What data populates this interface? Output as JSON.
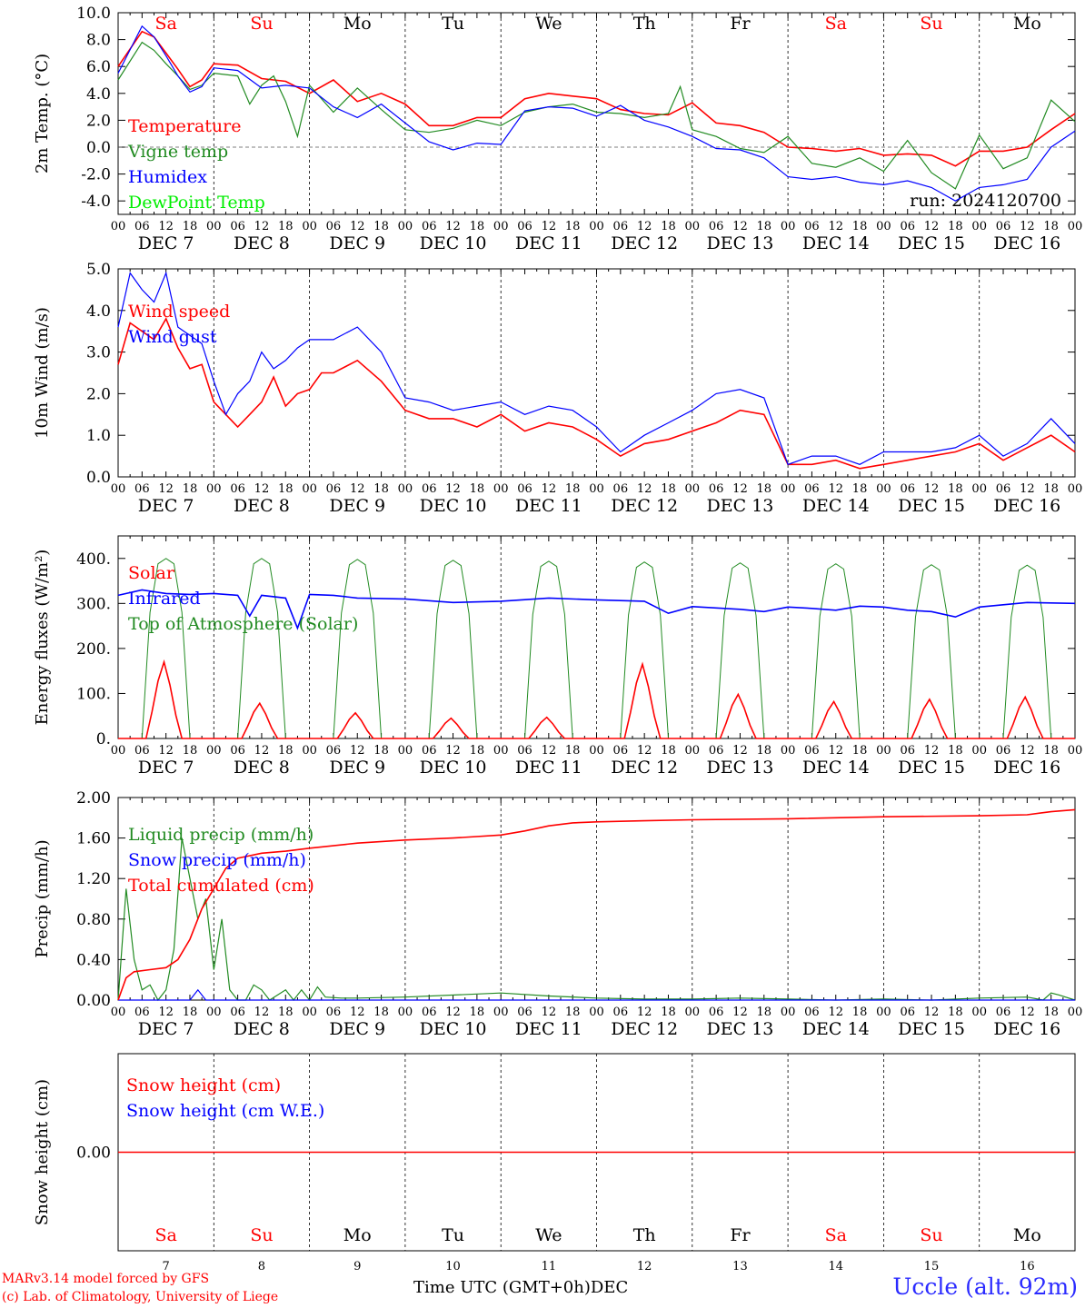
{
  "colors": {
    "red": "#ff0000",
    "darkgreen": "#228b22",
    "blue": "#0000ff",
    "lightgreen": "#00ee00",
    "text": "#000000",
    "location": "#2b2bff"
  },
  "days": [
    {
      "abbr": "Sa",
      "num": "7",
      "weekend": true
    },
    {
      "abbr": "Su",
      "num": "8",
      "weekend": true
    },
    {
      "abbr": "Mo",
      "num": "9",
      "weekend": false
    },
    {
      "abbr": "Tu",
      "num": "10",
      "weekend": false
    },
    {
      "abbr": "We",
      "num": "11",
      "weekend": false
    },
    {
      "abbr": "Th",
      "num": "12",
      "weekend": false
    },
    {
      "abbr": "Fr",
      "num": "13",
      "weekend": false
    },
    {
      "abbr": "Sa",
      "num": "14",
      "weekend": true
    },
    {
      "abbr": "Su",
      "num": "15",
      "weekend": true
    },
    {
      "abbr": "Mo",
      "num": "16",
      "weekend": false
    }
  ],
  "hour_ticks": [
    "00",
    "06",
    "12",
    "18"
  ],
  "month_label": "DEC",
  "footer": {
    "model": "MARv3.14 model forced by GFS",
    "copyright": "(c) Lab. of Climatology, University of Liege",
    "xlabel": "Time UTC (GMT+0h)",
    "month": "DEC",
    "location": "Uccle (alt. 92m)"
  },
  "chart_data": [
    {
      "type": "line",
      "ylabel": "2m Temp. (°C)",
      "ylim": [
        -5,
        10
      ],
      "yticks": [
        "10.0",
        "8.0",
        "6.0",
        "4.0",
        "2.0",
        "0.0",
        "-2.0",
        "-4.0"
      ],
      "ytick_values": [
        10,
        8,
        6,
        4,
        2,
        0,
        -2,
        -4
      ],
      "zero_line": true,
      "run_label": "run: 2024120700",
      "x_unit": "hours since Dec 7 00 UTC",
      "series": [
        {
          "name": "Temperature",
          "color": "#ff0000",
          "x": [
            0,
            6,
            9,
            12,
            15,
            18,
            21,
            24,
            30,
            36,
            42,
            48,
            54,
            60,
            66,
            72,
            78,
            84,
            90,
            96,
            102,
            108,
            114,
            120,
            126,
            132,
            138,
            144,
            150,
            156,
            162,
            168,
            174,
            180,
            186,
            192,
            198,
            204,
            210,
            216,
            222,
            228,
            234,
            240
          ],
          "y": [
            6.0,
            8.6,
            8.2,
            7.0,
            5.8,
            4.5,
            5.0,
            6.2,
            6.1,
            5.1,
            4.9,
            4.0,
            5.0,
            3.4,
            4.0,
            3.2,
            1.6,
            1.6,
            2.2,
            2.2,
            3.6,
            4.0,
            3.8,
            3.6,
            2.8,
            2.5,
            2.4,
            3.3,
            1.8,
            1.6,
            1.1,
            0.0,
            -0.1,
            -0.3,
            -0.1,
            -0.6,
            -0.5,
            -0.6,
            -1.4,
            -0.3,
            -0.3,
            0.0,
            1.3,
            2.5
          ]
        },
        {
          "name": "Vigne temp",
          "color": "#228b22",
          "x": [
            0,
            6,
            9,
            12,
            15,
            18,
            21,
            24,
            30,
            33,
            36,
            39,
            42,
            45,
            48,
            54,
            60,
            66,
            72,
            78,
            84,
            90,
            96,
            102,
            108,
            114,
            120,
            126,
            132,
            138,
            141,
            144,
            150,
            156,
            162,
            168,
            174,
            180,
            186,
            192,
            198,
            204,
            210,
            216,
            222,
            228,
            234,
            240
          ],
          "y": [
            5.0,
            7.8,
            7.2,
            6.2,
            5.3,
            4.3,
            4.6,
            5.5,
            5.3,
            3.2,
            4.6,
            5.3,
            3.4,
            0.8,
            4.6,
            2.6,
            4.4,
            2.8,
            1.3,
            1.1,
            1.4,
            2.0,
            1.6,
            2.6,
            3.0,
            3.2,
            2.6,
            2.5,
            2.2,
            2.5,
            4.5,
            1.3,
            0.8,
            -0.1,
            -0.4,
            0.8,
            -1.2,
            -1.5,
            -0.8,
            -1.8,
            0.5,
            -1.9,
            -3.1,
            0.9,
            -1.6,
            -0.8,
            3.5,
            1.9
          ]
        },
        {
          "name": "Humidex",
          "color": "#0000ff",
          "x": [
            0,
            6,
            9,
            12,
            15,
            18,
            21,
            24,
            30,
            36,
            42,
            48,
            54,
            60,
            66,
            72,
            78,
            84,
            90,
            96,
            102,
            108,
            114,
            120,
            126,
            132,
            138,
            144,
            150,
            156,
            162,
            168,
            174,
            180,
            186,
            192,
            198,
            204,
            210,
            216,
            222,
            228,
            234,
            240
          ],
          "y": [
            5.5,
            9.0,
            8.2,
            6.8,
            5.3,
            4.1,
            4.5,
            5.9,
            5.7,
            4.4,
            4.6,
            4.4,
            3.0,
            2.2,
            3.2,
            1.8,
            0.4,
            -0.2,
            0.3,
            0.2,
            2.7,
            3.0,
            2.9,
            2.3,
            3.1,
            2.0,
            1.5,
            0.8,
            -0.1,
            -0.2,
            -0.8,
            -2.2,
            -2.4,
            -2.2,
            -2.6,
            -2.8,
            -2.5,
            -3.0,
            -4.0,
            -3.0,
            -2.8,
            -2.4,
            0.0,
            1.2
          ]
        },
        {
          "name": "DewPoint Temp",
          "color": "#00ee00",
          "x": [],
          "y": []
        }
      ]
    },
    {
      "type": "line",
      "ylabel": "10m Wind (m/s)",
      "ylim": [
        0,
        5
      ],
      "yticks": [
        "5.0",
        "4.0",
        "3.0",
        "2.0",
        "1.0",
        "0.0"
      ],
      "ytick_values": [
        5,
        4,
        3,
        2,
        1,
        0
      ],
      "x_unit": "hours since Dec 7 00 UTC",
      "series": [
        {
          "name": "Wind speed",
          "color": "#ff0000",
          "x": [
            0,
            3,
            6,
            9,
            12,
            15,
            18,
            21,
            24,
            27,
            30,
            33,
            36,
            39,
            42,
            45,
            48,
            51,
            54,
            60,
            66,
            72,
            78,
            84,
            90,
            96,
            102,
            108,
            114,
            120,
            126,
            132,
            138,
            144,
            150,
            156,
            162,
            168,
            174,
            180,
            186,
            192,
            198,
            204,
            210,
            216,
            222,
            228,
            234,
            240
          ],
          "y": [
            2.7,
            3.7,
            3.5,
            3.3,
            3.8,
            3.1,
            2.6,
            2.7,
            1.8,
            1.5,
            1.2,
            1.5,
            1.8,
            2.4,
            1.7,
            2.0,
            2.1,
            2.5,
            2.5,
            2.8,
            2.3,
            1.6,
            1.4,
            1.4,
            1.2,
            1.5,
            1.1,
            1.3,
            1.2,
            0.9,
            0.5,
            0.8,
            0.9,
            1.1,
            1.3,
            1.6,
            1.5,
            0.3,
            0.3,
            0.4,
            0.2,
            0.3,
            0.4,
            0.5,
            0.6,
            0.8,
            0.4,
            0.7,
            1.0,
            0.6
          ]
        },
        {
          "name": "Wind gust",
          "color": "#0000ff",
          "x": [
            0,
            3,
            6,
            9,
            12,
            15,
            18,
            21,
            24,
            27,
            30,
            33,
            36,
            39,
            42,
            45,
            48,
            51,
            54,
            60,
            66,
            72,
            78,
            84,
            90,
            96,
            102,
            108,
            114,
            120,
            126,
            132,
            138,
            144,
            150,
            156,
            162,
            168,
            174,
            180,
            186,
            192,
            198,
            204,
            210,
            216,
            222,
            228,
            234,
            240
          ],
          "y": [
            3.6,
            4.9,
            4.5,
            4.2,
            4.9,
            3.6,
            3.4,
            3.2,
            2.3,
            1.5,
            2.0,
            2.3,
            3.0,
            2.6,
            2.8,
            3.1,
            3.3,
            3.3,
            3.3,
            3.6,
            3.0,
            1.9,
            1.8,
            1.6,
            1.7,
            1.8,
            1.5,
            1.7,
            1.6,
            1.2,
            0.6,
            1.0,
            1.3,
            1.6,
            2.0,
            2.1,
            1.9,
            0.3,
            0.5,
            0.5,
            0.3,
            0.6,
            0.6,
            0.6,
            0.7,
            1.0,
            0.5,
            0.8,
            1.4,
            0.8
          ]
        }
      ]
    },
    {
      "type": "line",
      "ylabel": "Energy fluxes (W/m²)",
      "ylim": [
        0,
        450
      ],
      "yticks": [
        "400.",
        "300.",
        "200.",
        "100.",
        "0."
      ],
      "ytick_values": [
        400,
        300,
        200,
        100,
        0
      ],
      "x_unit": "hours since Dec 7 00 UTC",
      "series": [
        {
          "name": "Solar",
          "color": "#ff0000",
          "peaks": [
            170,
            78,
            57,
            45,
            47,
            165,
            98,
            82,
            87,
            92
          ]
        },
        {
          "name": "Infrared",
          "color": "#0000ff",
          "x": [
            0,
            6,
            12,
            18,
            24,
            30,
            33,
            36,
            42,
            45,
            48,
            54,
            60,
            72,
            84,
            96,
            108,
            120,
            132,
            138,
            144,
            150,
            156,
            162,
            168,
            174,
            180,
            186,
            192,
            198,
            204,
            210,
            216,
            228,
            240
          ],
          "y": [
            318,
            330,
            322,
            320,
            322,
            318,
            272,
            318,
            312,
            245,
            320,
            318,
            312,
            310,
            302,
            305,
            312,
            308,
            305,
            278,
            293,
            290,
            287,
            282,
            292,
            289,
            285,
            294,
            292,
            285,
            282,
            270,
            292,
            302,
            300
          ]
        },
        {
          "name": "Top of Atmosphere (Solar)",
          "color": "#228b22",
          "peaks": [
            400,
            400,
            398,
            396,
            394,
            392,
            390,
            388,
            386,
            385
          ]
        }
      ]
    },
    {
      "type": "line",
      "ylabel": "Precip (mm/h)",
      "ylim": [
        0,
        2
      ],
      "yticks": [
        "2.00",
        "1.60",
        "1.20",
        "0.80",
        "0.40",
        "0.00"
      ],
      "ytick_values": [
        2.0,
        1.6,
        1.2,
        0.8,
        0.4,
        0.0
      ],
      "x_unit": "hours since Dec 7 00 UTC",
      "series": [
        {
          "name": "Liquid precip (mm/h)",
          "color": "#228b22",
          "x": [
            0,
            2,
            4,
            6,
            8,
            10,
            12,
            14,
            16,
            18,
            20,
            22,
            24,
            26,
            28,
            30,
            32,
            34,
            36,
            38,
            40,
            42,
            44,
            46,
            48,
            50,
            52,
            56,
            60,
            72,
            96,
            108,
            120,
            132,
            144,
            156,
            168,
            180,
            192,
            204,
            216,
            228,
            232,
            234,
            236,
            240
          ],
          "y": [
            0,
            1.1,
            0.4,
            0.1,
            0.15,
            0.0,
            0.1,
            0.5,
            1.6,
            1.2,
            0.8,
            1.0,
            0.3,
            0.8,
            0.1,
            0.0,
            0.0,
            0.15,
            0.1,
            0.0,
            0.05,
            0.1,
            0.0,
            0.1,
            0.0,
            0.13,
            0.03,
            0.02,
            0.02,
            0.03,
            0.07,
            0.04,
            0.02,
            0.01,
            0.01,
            0.02,
            0.01,
            0.0,
            0.01,
            0.0,
            0.02,
            0.03,
            0.0,
            0.07,
            0.05,
            0.0
          ]
        },
        {
          "name": "Snow precip (mm/h)",
          "color": "#0000ff",
          "x": [
            0,
            12,
            18,
            20,
            22,
            240
          ],
          "y": [
            0,
            0,
            0,
            0.1,
            0,
            0
          ]
        },
        {
          "name": "Total cumulated (cm)",
          "color": "#ff0000",
          "x": [
            0,
            2,
            4,
            8,
            12,
            15,
            18,
            21,
            24,
            27,
            30,
            36,
            42,
            48,
            60,
            72,
            84,
            96,
            102,
            108,
            114,
            120,
            132,
            144,
            168,
            192,
            216,
            228,
            234,
            240
          ],
          "y": [
            0,
            0.22,
            0.28,
            0.3,
            0.32,
            0.4,
            0.6,
            0.9,
            1.1,
            1.3,
            1.4,
            1.45,
            1.47,
            1.5,
            1.55,
            1.58,
            1.6,
            1.63,
            1.67,
            1.72,
            1.75,
            1.76,
            1.77,
            1.78,
            1.79,
            1.81,
            1.82,
            1.83,
            1.86,
            1.88
          ]
        }
      ]
    },
    {
      "type": "line",
      "ylabel": "Snow height (cm)",
      "yticks": [
        "0.00"
      ],
      "ytick_values": [
        0
      ],
      "series": [
        {
          "name": "Snow height (cm)",
          "color": "#ff0000",
          "x": [
            0,
            240
          ],
          "y": [
            0,
            0
          ]
        },
        {
          "name": "Snow height (cm W.E.)",
          "color": "#0000ff",
          "x": [],
          "y": []
        }
      ]
    }
  ]
}
